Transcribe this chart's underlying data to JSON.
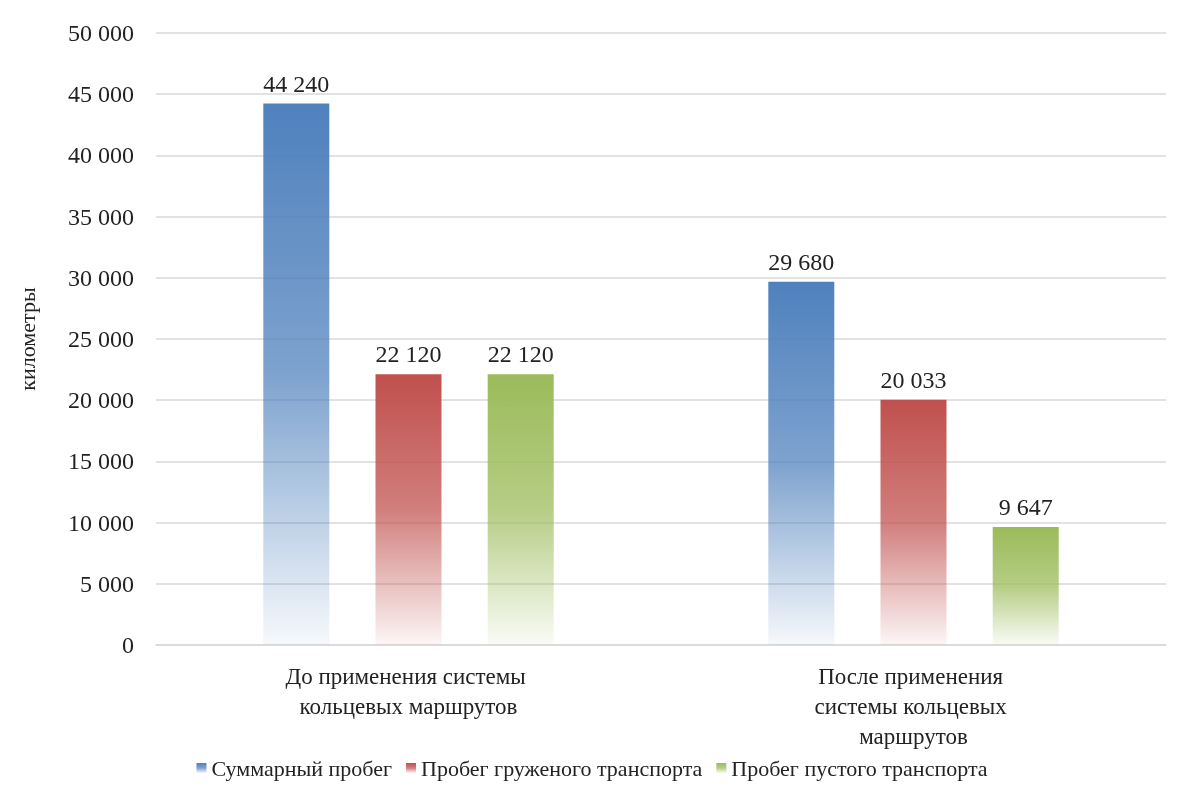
{
  "chart_data": {
    "type": "bar",
    "ylabel": "километры",
    "categories": [
      "До применения системы кольцевых маршрутов",
      "После применения системы кольцевых маршрутов"
    ],
    "series": [
      {
        "name": "Суммарный пробег",
        "color": "#4f81bd",
        "values": [
          44240,
          29680
        ],
        "value_labels": [
          "44 240",
          "29 680"
        ]
      },
      {
        "name": "Пробег груженого транспорта",
        "color": "#c0504d",
        "values": [
          22120,
          20033
        ],
        "value_labels": [
          "22 120",
          "20 033"
        ]
      },
      {
        "name": "Пробег пустого транспорта",
        "color": "#9bbb59",
        "values": [
          22120,
          9647
        ],
        "value_labels": [
          "22 120",
          "9 647"
        ]
      }
    ],
    "ylim": [
      0,
      50000
    ],
    "yticks": [
      {
        "value": 0,
        "label": "0"
      },
      {
        "value": 5000,
        "label": "5 000"
      },
      {
        "value": 10000,
        "label": "10 000"
      },
      {
        "value": 15000,
        "label": "15 000"
      },
      {
        "value": 20000,
        "label": "20 000"
      },
      {
        "value": 25000,
        "label": "25 000"
      },
      {
        "value": 30000,
        "label": "30 000"
      },
      {
        "value": 35000,
        "label": "35 000"
      },
      {
        "value": 40000,
        "label": "40 000"
      },
      {
        "value": 45000,
        "label": "45 000"
      },
      {
        "value": 50000,
        "label": "50 000"
      }
    ],
    "grid": "y",
    "legend": "bottom"
  }
}
